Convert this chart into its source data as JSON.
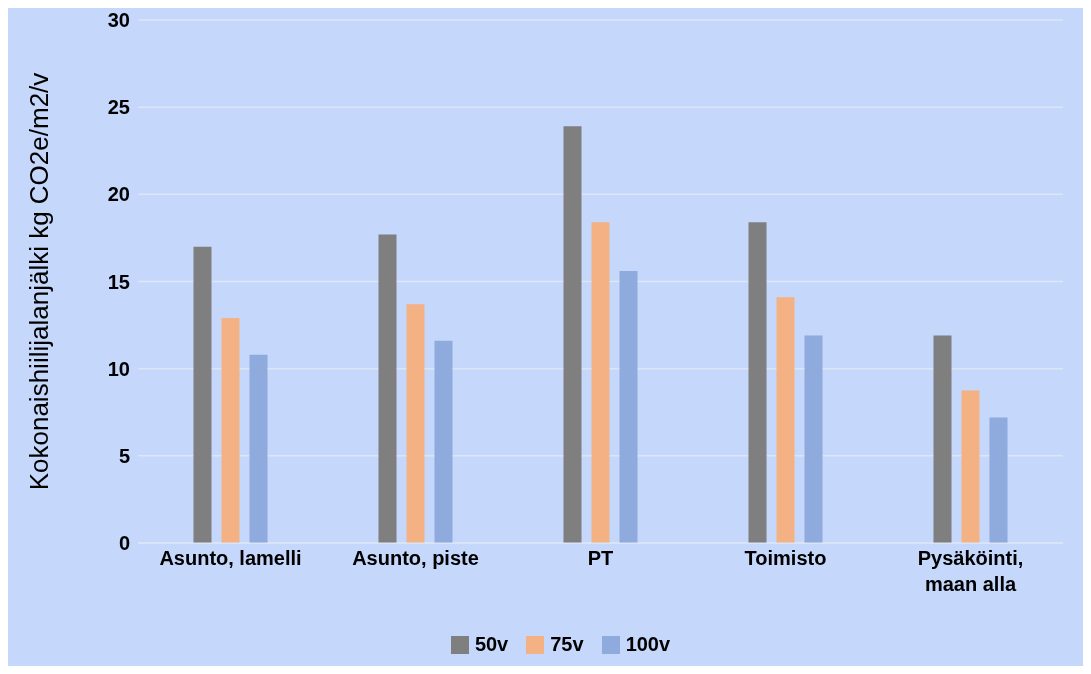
{
  "chart_data": {
    "type": "bar",
    "ylabel": "Kokonaishiilijalanjälki kg CO2e/m2/v",
    "categories": [
      "Asunto, lamelli",
      "Asunto, piste",
      "PT",
      "Toimisto",
      "Pysäköinti, maan alla"
    ],
    "series": [
      {
        "name": "50v",
        "color": "#7f7f7f",
        "values": [
          17.0,
          17.7,
          23.9,
          18.4,
          11.9
        ]
      },
      {
        "name": "75v",
        "color": "#f4b183",
        "values": [
          12.9,
          13.7,
          18.4,
          14.1,
          8.75
        ]
      },
      {
        "name": "100v",
        "color": "#8faadc",
        "values": [
          10.8,
          11.6,
          15.6,
          11.9,
          7.2
        ]
      }
    ],
    "ylim": [
      0,
      30
    ],
    "yticks": [
      0,
      5,
      10,
      15,
      20,
      25,
      30
    ],
    "grid": "y",
    "legend": "bottom"
  }
}
